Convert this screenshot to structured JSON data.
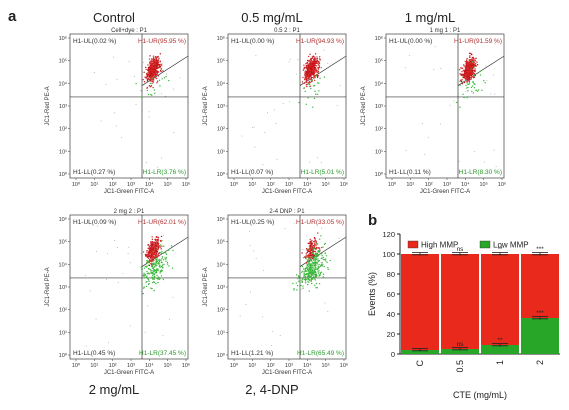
{
  "panel_a_label": "a",
  "panel_b_label": "b",
  "flow_panels": [
    {
      "condition": "Control",
      "title": "Cell+dye : P1",
      "ul": "H1-UL(0.02 %)",
      "ur": "H1-UR(95.95 %)",
      "ll": "H1-LL(0.27 %)",
      "lr": "H1-LR(3.76 %)",
      "red_frac": 0.96,
      "green_frac": 0.04
    },
    {
      "condition": "0.5 mg/mL",
      "title": "0.5 2 : P1",
      "ul": "H1-UL(0.00 %)",
      "ur": "H1-UR(94.93 %)",
      "ll": "H1-LL(0.07 %)",
      "lr": "H1-LR(5.01 %)",
      "red_frac": 0.95,
      "green_frac": 0.05
    },
    {
      "condition": "1 mg/mL",
      "title": "1 mg 1 : P1",
      "ul": "H1-UL(0.00 %)",
      "ur": "H1-UR(91.59 %)",
      "ll": "H1-LL(0.11 %)",
      "lr": "H1-LR(8.30 %)",
      "red_frac": 0.92,
      "green_frac": 0.08
    },
    {
      "condition": "2 mg/mL",
      "title": "2 mg 2 : P1",
      "ul": "H1-UL(0.09 %)",
      "ur": "H1-UR(62.01 %)",
      "ll": "H1-LL(0.45 %)",
      "lr": "H1-LR(37.45 %)",
      "red_frac": 0.62,
      "green_frac": 0.37
    },
    {
      "condition": "2, 4-DNP",
      "title": "2-4 DNP : P1",
      "ul": "H1-UL(0.25 %)",
      "ur": "H1-UR(33.05 %)",
      "ll": "H1-LL(1.21 %)",
      "lr": "H1-LR(65.49 %)",
      "red_frac": 0.33,
      "green_frac": 0.65
    }
  ],
  "flow_axes": {
    "xlabel": "JC1-Green FITC-A",
    "ylabel": "JC1-Red PE-A",
    "x_ticks": [
      "10⁰",
      "10¹",
      "10²",
      "10³",
      "10⁴",
      "10⁵",
      "10⁶"
    ],
    "y_ticks": [
      "10⁰",
      "10¹",
      "10²",
      "10³",
      "10⁴",
      "10⁵",
      "10⁶"
    ]
  },
  "chart_data": {
    "type": "bar",
    "stacked": true,
    "categories": [
      "C",
      "0.5",
      "1",
      "2"
    ],
    "series": [
      {
        "name": "High MMP",
        "values": [
          96,
          95,
          91,
          64
        ],
        "color": "#e8291c"
      },
      {
        "name": "Low MMP",
        "values": [
          4,
          5,
          9,
          36
        ],
        "color": "#27a627"
      }
    ],
    "significance_low": [
      "",
      "ns",
      "**",
      "***"
    ],
    "significance_high": [
      "",
      "ns",
      "**",
      "***"
    ],
    "xlabel": "CTE (mg/mL)",
    "ylabel": "Events (%)",
    "ylim": [
      0,
      120
    ],
    "yticks": [
      0,
      20,
      40,
      60,
      80,
      100,
      120
    ],
    "legend_position": "top"
  },
  "colors": {
    "red": "#e8291c",
    "green": "#27a627",
    "dark_red": "#b03030",
    "quad_green": "#2a9a2a"
  }
}
